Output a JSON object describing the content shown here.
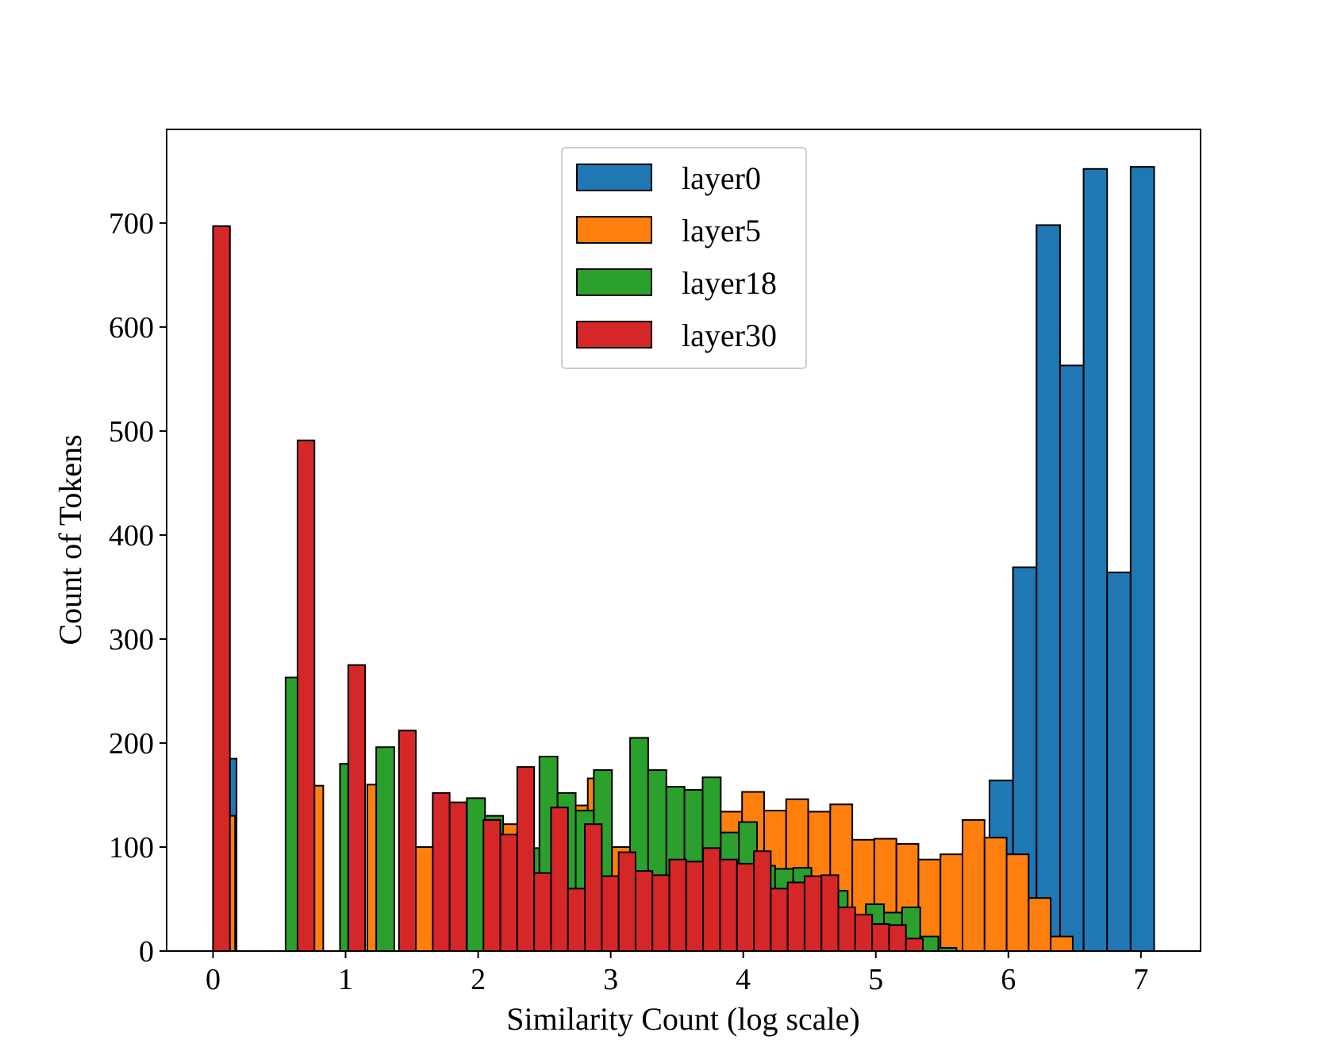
{
  "chart_data": {
    "type": "bar",
    "title": "",
    "xlabel": "Similarity Count (log scale)",
    "ylabel": "Count of Tokens",
    "xlim": [
      -0.35,
      7.45
    ],
    "ylim": [
      0,
      790
    ],
    "xticks": [
      0,
      1,
      2,
      3,
      4,
      5,
      6,
      7
    ],
    "yticks": [
      0,
      100,
      200,
      300,
      400,
      500,
      600,
      700
    ],
    "legend_position": "upper center",
    "series": [
      {
        "name": "layer0",
        "color": "#1f77b4",
        "bin_start": 0.0,
        "bin_width": 0.1775,
        "values": [
          185,
          0,
          0,
          0,
          0,
          0,
          0,
          0,
          0,
          0,
          0,
          0,
          0,
          0,
          0,
          0,
          0,
          0,
          0,
          0,
          0,
          0,
          0,
          0,
          0,
          0,
          0,
          0,
          0,
          0,
          0,
          0,
          0,
          164,
          369,
          698,
          563,
          752,
          364,
          754
        ]
      },
      {
        "name": "layer5",
        "color": "#ff7f0e",
        "bin_start": 0.0,
        "bin_width": 0.1663,
        "values": [
          130,
          0,
          0,
          0,
          159,
          0,
          0,
          160,
          0,
          100,
          0,
          0,
          0,
          122,
          0,
          0,
          140,
          166,
          100,
          158,
          130,
          138,
          133,
          134,
          153,
          135,
          146,
          134,
          141,
          107,
          108,
          103,
          88,
          93,
          126,
          109,
          93,
          51,
          14,
          0,
          0,
          0,
          0
        ]
      },
      {
        "name": "layer18",
        "color": "#2ca02c",
        "bin_start": 0.0,
        "bin_width": 0.1368,
        "values": [
          0,
          0,
          0,
          0,
          263,
          0,
          0,
          180,
          0,
          196,
          0,
          0,
          0,
          0,
          147,
          130,
          0,
          99,
          187,
          152,
          135,
          174,
          0,
          205,
          174,
          158,
          155,
          167,
          114,
          124,
          82,
          79,
          80,
          50,
          58,
          35,
          45,
          37,
          42,
          14,
          3
        ]
      },
      {
        "name": "layer30",
        "color": "#d62728",
        "bin_start": 0.0,
        "bin_width": 0.1275,
        "values": [
          697,
          0,
          0,
          0,
          0,
          491,
          0,
          0,
          275,
          0,
          0,
          212,
          0,
          152,
          143,
          0,
          126,
          112,
          177,
          75,
          138,
          60,
          122,
          72,
          95,
          77,
          73,
          88,
          86,
          99,
          88,
          84,
          96,
          60,
          66,
          72,
          73,
          42,
          35,
          26,
          25,
          12
        ]
      }
    ]
  }
}
